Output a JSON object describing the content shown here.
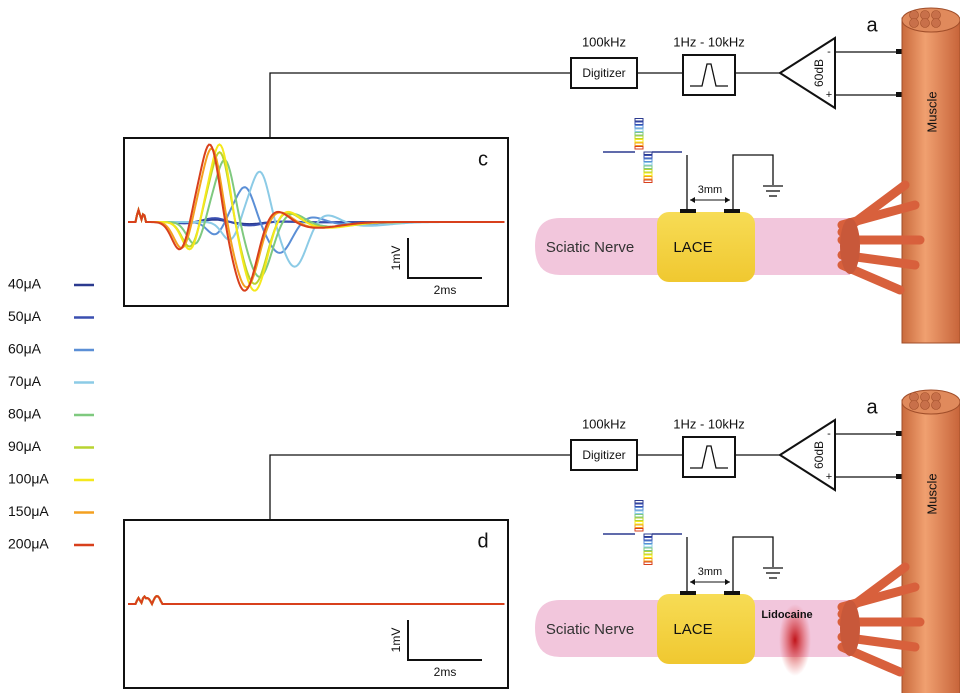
{
  "legend": [
    {
      "label": "40μA",
      "color": "#2b3a8f"
    },
    {
      "label": "50μA",
      "color": "#3a4fb0"
    },
    {
      "label": "60μA",
      "color": "#5b8fd6"
    },
    {
      "label": "70μA",
      "color": "#8ccbe6"
    },
    {
      "label": "80μA",
      "color": "#7fc97f"
    },
    {
      "label": "90μA",
      "color": "#b8d430"
    },
    {
      "label": "100μA",
      "color": "#f5e81c"
    },
    {
      "label": "150μA",
      "color": "#f4a020"
    },
    {
      "label": "200μA",
      "color": "#d8401c"
    }
  ],
  "panels": [
    {
      "letter": "c",
      "digitizer_rate": "100kHz",
      "digitizer": "Digitizer",
      "filter": "1Hz - 10kHz",
      "gain": "60dB",
      "minus": "-",
      "plus": "+",
      "muscle_letter": "a",
      "muscle": "Muscle",
      "electrode_spacing": "3mm",
      "nerve": "Sciatic Nerve",
      "cuff": "LACE",
      "scale_y": "1mV",
      "scale_x": "2ms",
      "conduction": true
    },
    {
      "letter": "d",
      "digitizer_rate": "100kHz",
      "digitizer": "Digitizer",
      "filter": "1Hz - 10kHz",
      "gain": "60dB",
      "minus": "-",
      "plus": "+",
      "muscle_letter": "a",
      "muscle": "Muscle",
      "electrode_spacing": "3mm",
      "nerve": "Sciatic Nerve",
      "cuff": "LACE",
      "scale_y": "1mV",
      "scale_x": "2ms",
      "conduction": false,
      "block": "Lidocaine"
    }
  ]
}
